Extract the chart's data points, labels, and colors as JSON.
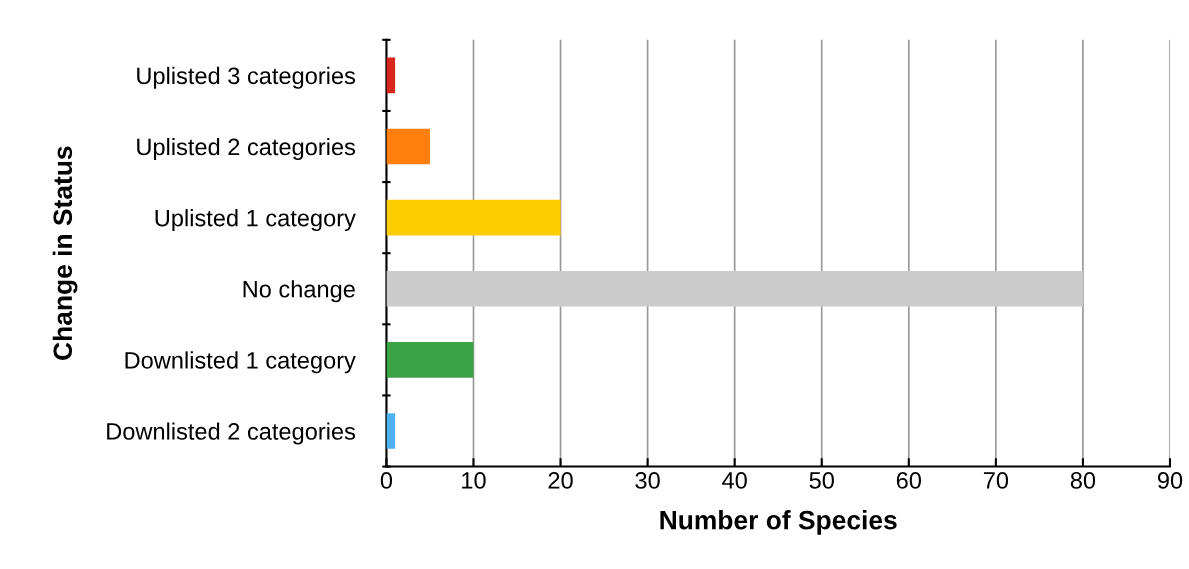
{
  "chart_data": {
    "type": "bar",
    "orientation": "horizontal",
    "xlabel": "Number of Species",
    "ylabel": "Change in Status",
    "categories": [
      "Uplisted 3 categories",
      "Uplisted 2 categories",
      "Uplisted 1 category",
      "No change",
      "Downlisted 1 category",
      "Downlisted 2 categories"
    ],
    "values": [
      1,
      5,
      20,
      80,
      10,
      1
    ],
    "colors": [
      "#d7261e",
      "#ff7f0e",
      "#ffcc00",
      "#cccccc",
      "#3aa346",
      "#4eb3f0"
    ],
    "xlim": [
      0,
      90
    ],
    "xticks": [
      0,
      10,
      20,
      30,
      40,
      50,
      60,
      70,
      80,
      90
    ],
    "grid": "x"
  }
}
